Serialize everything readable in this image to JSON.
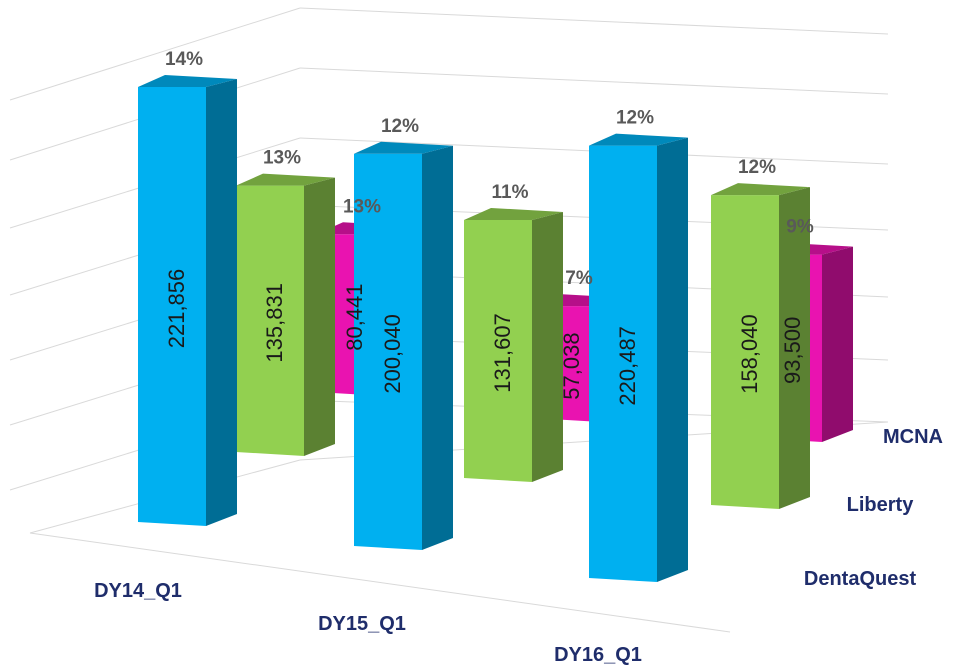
{
  "chart_data": {
    "type": "bar",
    "categories": [
      "DY14_Q1",
      "DY15_Q1",
      "DY16_Q1"
    ],
    "series": [
      {
        "name": "DentaQuest",
        "values": [
          221856,
          200040,
          220487
        ],
        "value_labels": [
          "221,856",
          "200,040",
          "220,487"
        ],
        "pct_labels": [
          "14%",
          "12%",
          "12%"
        ],
        "color": "#00b0f0"
      },
      {
        "name": "Liberty",
        "values": [
          135831,
          131607,
          158040
        ],
        "value_labels": [
          "135,831",
          "131,607",
          "158,040"
        ],
        "pct_labels": [
          "13%",
          "11%",
          "12%"
        ],
        "color": "#92d050"
      },
      {
        "name": "MCNA",
        "values": [
          80441,
          57038,
          93500
        ],
        "value_labels": [
          "80,441",
          "57,038",
          "93,500"
        ],
        "pct_labels": [
          "13%",
          "7%",
          "9%"
        ],
        "color": "#e913b0"
      }
    ],
    "three_d": true,
    "grid": true
  }
}
